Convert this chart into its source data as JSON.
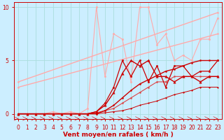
{
  "bg_color": "#cceeff",
  "grid_color": "#aadddd",
  "xlabel": "Vent moyen/en rafales ( km/h )",
  "xlabel_color": "#cc0000",
  "tick_color": "#cc0000",
  "xlim": [
    -0.5,
    23.5
  ],
  "ylim": [
    -0.5,
    10.5
  ],
  "yticks": [
    0,
    5,
    10
  ],
  "xticks": [
    0,
    1,
    2,
    3,
    4,
    5,
    6,
    7,
    8,
    9,
    10,
    11,
    12,
    13,
    14,
    15,
    16,
    17,
    18,
    19,
    20,
    21,
    22,
    23
  ],
  "series": [
    {
      "x": [
        0,
        23
      ],
      "y": [
        3.0,
        9.5
      ],
      "color": "#ffaaaa",
      "lw": 1.0,
      "marker": "o",
      "ms": 1.5,
      "zorder": 2
    },
    {
      "x": [
        0,
        23
      ],
      "y": [
        2.5,
        7.5
      ],
      "color": "#ffaaaa",
      "lw": 1.0,
      "marker": "o",
      "ms": 1.5,
      "zorder": 2
    },
    {
      "x": [
        0,
        1,
        2,
        3,
        4,
        5,
        6,
        7,
        8,
        9,
        10,
        11,
        12,
        13,
        14,
        15,
        16,
        17,
        18,
        19,
        20,
        21,
        22,
        23
      ],
      "y": [
        0.0,
        0.0,
        0.0,
        0.0,
        0.2,
        0.0,
        0.2,
        0.0,
        0.5,
        10.0,
        3.5,
        7.5,
        7.0,
        3.0,
        10.0,
        10.0,
        6.5,
        7.5,
        5.0,
        5.5,
        5.0,
        7.0,
        7.0,
        9.0
      ],
      "color": "#ffaaaa",
      "lw": 0.8,
      "marker": "o",
      "ms": 1.8,
      "zorder": 3
    },
    {
      "x": [
        0,
        1,
        2,
        3,
        4,
        5,
        6,
        7,
        8,
        9,
        10,
        11,
        12,
        13,
        14,
        15,
        16,
        17,
        18,
        19,
        20,
        21,
        22,
        23
      ],
      "y": [
        0.0,
        0.0,
        0.0,
        0.0,
        0.0,
        0.0,
        0.0,
        0.0,
        0.0,
        0.0,
        0.3,
        0.8,
        1.5,
        2.2,
        2.8,
        3.2,
        3.6,
        4.0,
        4.2,
        4.5,
        4.8,
        5.0,
        5.0,
        5.0
      ],
      "color": "#cc0000",
      "lw": 1.0,
      "marker": "o",
      "ms": 1.5,
      "zorder": 6
    },
    {
      "x": [
        0,
        1,
        2,
        3,
        4,
        5,
        6,
        7,
        8,
        9,
        10,
        11,
        12,
        13,
        14,
        15,
        16,
        17,
        18,
        19,
        20,
        21,
        22,
        23
      ],
      "y": [
        0.0,
        0.0,
        0.0,
        0.0,
        0.0,
        0.0,
        0.0,
        0.0,
        0.0,
        0.2,
        0.8,
        2.0,
        3.8,
        5.0,
        4.5,
        5.0,
        3.5,
        3.5,
        3.0,
        3.5,
        3.5,
        3.0,
        3.5,
        3.5
      ],
      "color": "#cc0000",
      "lw": 1.0,
      "marker": "^",
      "ms": 2.5,
      "zorder": 6
    },
    {
      "x": [
        0,
        1,
        2,
        3,
        4,
        5,
        6,
        7,
        8,
        9,
        10,
        11,
        12,
        13,
        14,
        15,
        16,
        17,
        18,
        19,
        20,
        21,
        22,
        23
      ],
      "y": [
        0.0,
        0.0,
        0.0,
        0.0,
        0.0,
        0.0,
        0.0,
        0.0,
        0.0,
        0.2,
        1.0,
        2.5,
        5.0,
        3.5,
        5.0,
        3.0,
        4.5,
        2.5,
        4.5,
        4.5,
        3.5,
        4.0,
        4.0,
        5.0
      ],
      "color": "#cc0000",
      "lw": 0.9,
      "marker": "o",
      "ms": 1.8,
      "zorder": 5
    },
    {
      "x": [
        0,
        1,
        2,
        3,
        4,
        5,
        6,
        7,
        8,
        9,
        10,
        11,
        12,
        13,
        14,
        15,
        16,
        17,
        18,
        19,
        20,
        21,
        22,
        23
      ],
      "y": [
        0.0,
        0.0,
        0.0,
        0.0,
        0.0,
        0.0,
        0.0,
        0.0,
        0.0,
        0.1,
        0.3,
        0.5,
        1.0,
        1.5,
        2.0,
        2.5,
        3.0,
        3.0,
        3.5,
        3.5,
        3.5,
        3.5,
        3.5,
        3.5
      ],
      "color": "#dd4444",
      "lw": 0.8,
      "marker": "o",
      "ms": 1.5,
      "zorder": 4
    },
    {
      "x": [
        0,
        1,
        2,
        3,
        4,
        5,
        6,
        7,
        8,
        9,
        10,
        11,
        12,
        13,
        14,
        15,
        16,
        17,
        18,
        19,
        20,
        21,
        22,
        23
      ],
      "y": [
        0.0,
        0.0,
        0.0,
        0.0,
        0.0,
        0.0,
        0.0,
        0.0,
        0.0,
        0.0,
        0.1,
        0.2,
        0.3,
        0.5,
        0.8,
        1.0,
        1.2,
        1.5,
        1.8,
        2.0,
        2.2,
        2.5,
        2.5,
        2.5
      ],
      "color": "#cc0000",
      "lw": 0.7,
      "marker": "o",
      "ms": 1.2,
      "zorder": 4
    }
  ]
}
